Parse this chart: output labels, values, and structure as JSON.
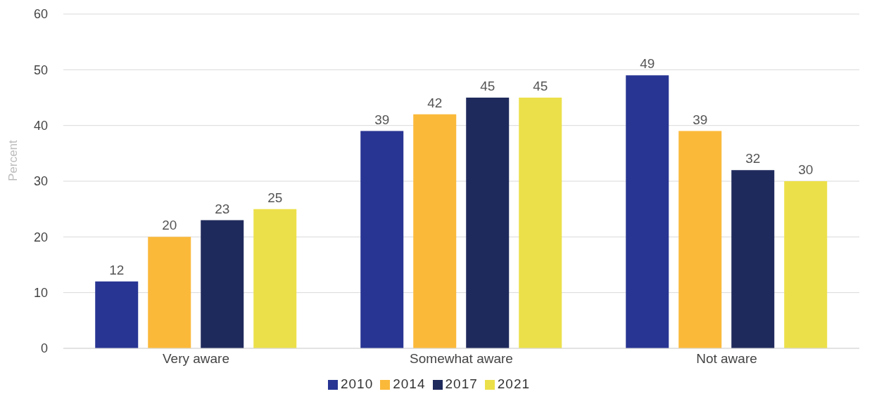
{
  "chart_data": {
    "type": "bar",
    "ylabel": "Percent",
    "categories": [
      "Very aware",
      "Somewhat aware",
      "Not aware"
    ],
    "series": [
      {
        "name": "2010",
        "color": "#283593",
        "values": [
          12,
          39,
          49
        ]
      },
      {
        "name": "2014",
        "color": "#fbb93a",
        "values": [
          20,
          42,
          39
        ]
      },
      {
        "name": "2017",
        "color": "#1f2a5c",
        "values": [
          23,
          45,
          32
        ]
      },
      {
        "name": "2021",
        "color": "#ece04a",
        "values": [
          25,
          45,
          30
        ]
      }
    ],
    "ylim": [
      0,
      60
    ],
    "yticks": [
      0,
      10,
      20,
      30,
      40,
      50,
      60
    ],
    "grid": "y",
    "legend": "bottom",
    "data_labels": true
  }
}
